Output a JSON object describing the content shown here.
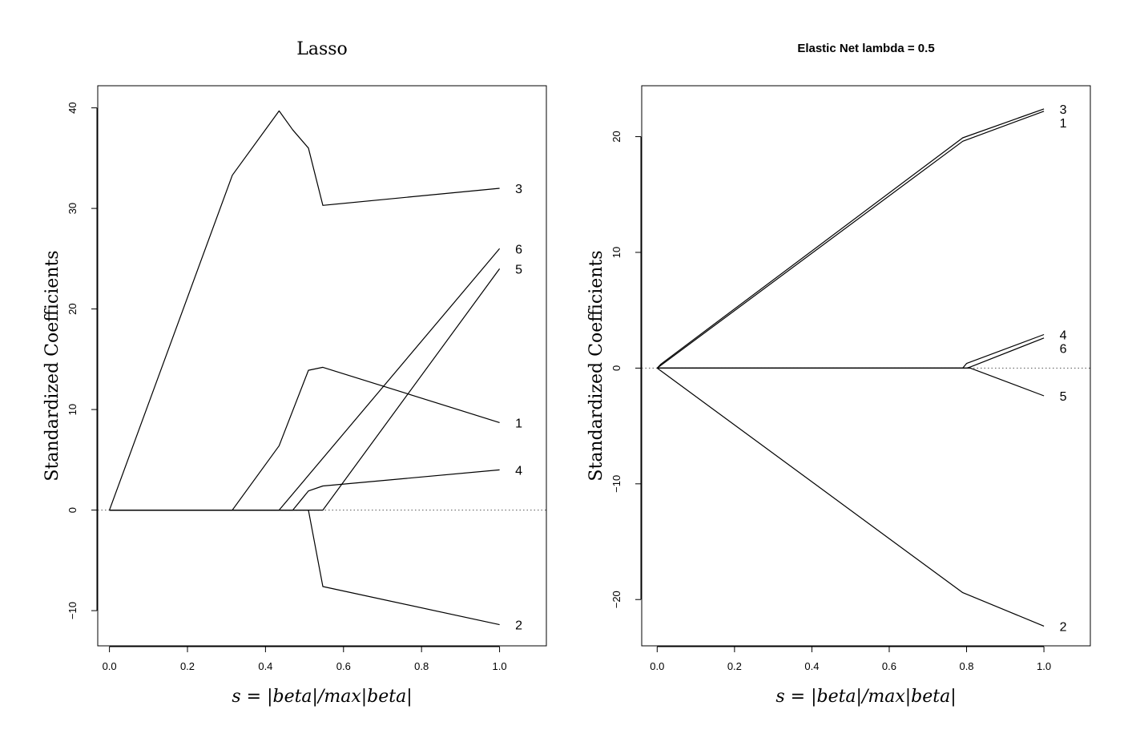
{
  "chart_data": [
    {
      "type": "line",
      "title": "Lasso",
      "xlabel": "s = |beta|/max|beta|",
      "ylabel": "Standardized Coefficients",
      "xlim": [
        -0.03,
        1.12
      ],
      "ylim": [
        -13.5,
        42.2
      ],
      "xticks": [
        0.0,
        0.2,
        0.4,
        0.6,
        0.8,
        1.0
      ],
      "xtick_labels": [
        "0.0",
        "0.2",
        "0.4",
        "0.6",
        "0.8",
        "1.0"
      ],
      "yticks": [
        -10,
        0,
        10,
        20,
        30,
        40
      ],
      "ytick_labels": [
        "−10",
        "0",
        "10",
        "20",
        "30",
        "40"
      ],
      "zero_line": "dotted",
      "series": [
        {
          "name": "3",
          "x": [
            0.0,
            0.315,
            0.435,
            0.47,
            0.51,
            0.547,
            1.0
          ],
          "y": [
            0,
            33.3,
            39.7,
            37.8,
            36.0,
            30.3,
            32.0
          ]
        },
        {
          "name": "6",
          "x": [
            0.0,
            0.435,
            1.0
          ],
          "y": [
            0,
            0,
            26.0
          ]
        },
        {
          "name": "5",
          "x": [
            0.0,
            0.547,
            1.0
          ],
          "y": [
            0,
            0,
            24.0
          ]
        },
        {
          "name": "1",
          "x": [
            0.0,
            0.315,
            0.435,
            0.51,
            0.547,
            1.0
          ],
          "y": [
            0,
            0,
            6.4,
            13.9,
            14.2,
            8.7
          ]
        },
        {
          "name": "4",
          "x": [
            0.0,
            0.47,
            0.51,
            0.547,
            1.0
          ],
          "y": [
            0,
            0,
            1.9,
            2.4,
            4.0
          ]
        },
        {
          "name": "2",
          "x": [
            0.0,
            0.51,
            0.547,
            1.0
          ],
          "y": [
            0,
            0,
            -7.6,
            -11.4
          ]
        }
      ]
    },
    {
      "type": "line",
      "title": "Elastic Net lambda = 0.5",
      "xlabel": "s = |beta|/max|beta|",
      "ylabel": "Standardized Coefficients",
      "xlim": [
        -0.04,
        1.12
      ],
      "ylim": [
        -24.0,
        24.4
      ],
      "xticks": [
        0.0,
        0.2,
        0.4,
        0.6,
        0.8,
        1.0
      ],
      "xtick_labels": [
        "0.0",
        "0.2",
        "0.4",
        "0.6",
        "0.8",
        "1.0"
      ],
      "yticks": [
        -20,
        -10,
        0,
        10,
        20
      ],
      "ytick_labels": [
        "−20",
        "−10",
        "0",
        "10",
        "20"
      ],
      "zero_line": "dotted",
      "series": [
        {
          "name": "3",
          "x": [
            0.0,
            0.01,
            0.79,
            1.0
          ],
          "y": [
            0,
            0.35,
            19.9,
            22.4
          ]
        },
        {
          "name": "1",
          "x": [
            0.0,
            0.79,
            1.0
          ],
          "y": [
            0,
            19.6,
            22.2
          ]
        },
        {
          "name": "4",
          "x": [
            0.0,
            0.79,
            0.8,
            1.0
          ],
          "y": [
            0,
            0,
            0.4,
            2.9
          ]
        },
        {
          "name": "6",
          "x": [
            0.0,
            0.8,
            0.81,
            1.0
          ],
          "y": [
            0,
            0,
            0.1,
            2.6
          ]
        },
        {
          "name": "5",
          "x": [
            0.0,
            0.81,
            1.0
          ],
          "y": [
            0,
            0,
            -2.4
          ]
        },
        {
          "name": "2",
          "x": [
            0.0,
            0.79,
            1.0
          ],
          "y": [
            0,
            -19.4,
            -22.3
          ]
        }
      ]
    }
  ]
}
